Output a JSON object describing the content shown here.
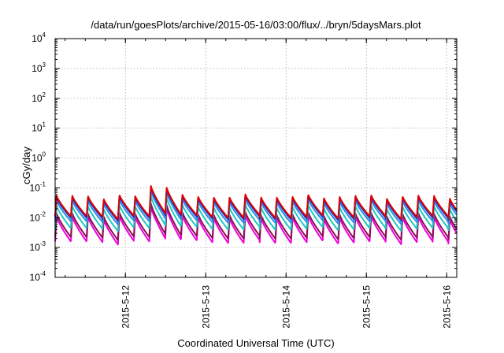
{
  "chart_data": {
    "type": "line",
    "title": "/data/run/goesPlots/archive/2015-05-16/03:00/flux/../bryn/5daysMars.plot",
    "xlabel": "Coordinated Universal Time (UTC)",
    "ylabel": "cGy/day",
    "y_scale": "log",
    "ylim": [
      0.0001,
      10000
    ],
    "xlim": [
      "2015-05-11 03:00",
      "2015-05-16 03:00"
    ],
    "grid": true,
    "y_ticks": [
      {
        "value": 0.0001,
        "base": "10",
        "exp": "-4"
      },
      {
        "value": 0.001,
        "base": "10",
        "exp": "-3"
      },
      {
        "value": 0.01,
        "base": "10",
        "exp": "-2"
      },
      {
        "value": 0.1,
        "base": "10",
        "exp": "-1"
      },
      {
        "value": 1,
        "base": "10",
        "exp": "0"
      },
      {
        "value": 10,
        "base": "10",
        "exp": "1"
      },
      {
        "value": 100,
        "base": "10",
        "exp": "2"
      },
      {
        "value": 1000,
        "base": "10",
        "exp": "3"
      },
      {
        "value": 10000,
        "base": "10",
        "exp": "4"
      }
    ],
    "x_ticks": [
      {
        "value": "2015-05-12 00:00",
        "label": "2015-5-12"
      },
      {
        "value": "2015-05-13 00:00",
        "label": "2015-5-13"
      },
      {
        "value": "2015-05-14 00:00",
        "label": "2015-5-14"
      },
      {
        "value": "2015-05-15 00:00",
        "label": "2015-5-15"
      },
      {
        "value": "2015-05-16 00:00",
        "label": "2015-5-16"
      }
    ],
    "pattern": {
      "cycle_hours": 4.7,
      "elevated_window": [
        "2015-05-12 06:00",
        "2015-05-12 12:00"
      ],
      "elevated_factor": 2.3
    },
    "series": [
      {
        "color": "#dd0000",
        "peak": 0.052,
        "trough": 0.0105
      },
      {
        "color": "#2233cc",
        "peak": 0.046,
        "trough": 0.0092
      },
      {
        "color": "#2a8fe0",
        "peak": 0.036,
        "trough": 0.0071
      },
      {
        "color": "#20c8c0",
        "peak": 0.024,
        "trough": 0.0042
      },
      {
        "color": "#8a1050",
        "peak": 0.0135,
        "trough": 0.0021
      },
      {
        "color": "#ee00dd",
        "peak": 0.0105,
        "trough": 0.0015
      }
    ]
  }
}
